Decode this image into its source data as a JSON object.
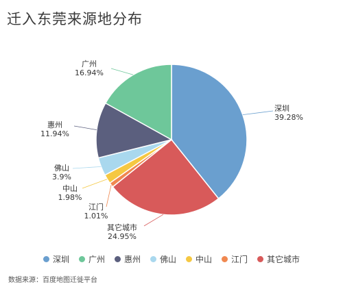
{
  "chart_data": {
    "type": "pie",
    "title": "迁入东莞来源地分布",
    "categories": [
      "深圳",
      "其它城市",
      "江门",
      "中山",
      "佛山",
      "惠州",
      "广州"
    ],
    "values": [
      39.28,
      24.95,
      1.01,
      1.98,
      3.9,
      11.94,
      16.94
    ],
    "value_labels": [
      "39.28%",
      "24.95%",
      "1.01%",
      "1.98%",
      "3.9%",
      "11.94%",
      "16.94%"
    ],
    "colors": [
      "#6a9fcf",
      "#d85a5a",
      "#f08850",
      "#f5c842",
      "#a9d8ee",
      "#5b5f7e",
      "#6ec79a"
    ],
    "legend_position": "bottom",
    "legend": [
      {
        "label": "深圳",
        "color": "#6a9fcf"
      },
      {
        "label": "广州",
        "color": "#6ec79a"
      },
      {
        "label": "惠州",
        "color": "#5b5f7e"
      },
      {
        "label": "佛山",
        "color": "#a9d8ee"
      },
      {
        "label": "中山",
        "color": "#f5c842"
      },
      {
        "label": "江门",
        "color": "#f08850"
      },
      {
        "label": "其它城市",
        "color": "#d85a5a"
      }
    ]
  },
  "source_note": "数据来源：百度地图迁徙平台"
}
